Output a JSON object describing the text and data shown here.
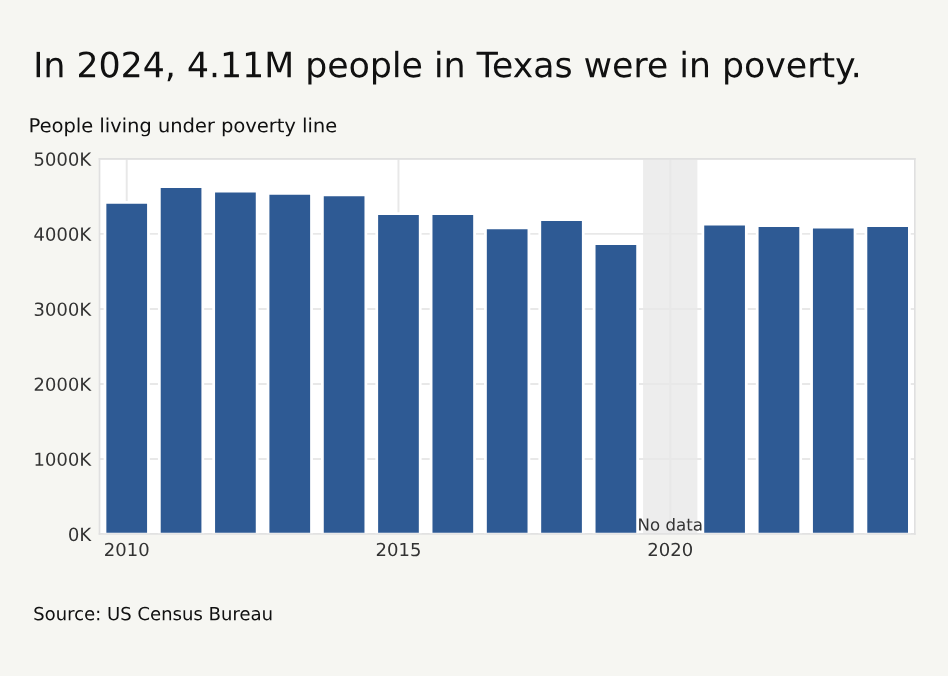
{
  "chart_data": {
    "type": "bar",
    "title": "In 2024, 4.11M people in Texas were in poverty.",
    "ylabel": "People living under poverty line",
    "x": [
      2010,
      2011,
      2012,
      2013,
      2014,
      2015,
      2016,
      2017,
      2018,
      2019,
      2020,
      2021,
      2022,
      2023,
      2024
    ],
    "values": [
      4420,
      4630,
      4570,
      4540,
      4520,
      4270,
      4270,
      4080,
      4190,
      3870,
      null,
      4130,
      4110,
      4090,
      4110
    ],
    "color": "#2e5a94",
    "xlim": [
      2009.5,
      2024.5
    ],
    "xticks": [
      2010,
      2015,
      2020
    ],
    "ylim": [
      0,
      5000
    ],
    "yticks": [
      {
        "value": 0,
        "label": "0K"
      },
      {
        "value": 1000,
        "label": "1000K"
      },
      {
        "value": 2000,
        "label": "2000K"
      },
      {
        "value": 3000,
        "label": "3000K"
      },
      {
        "value": 4000,
        "label": "4000K"
      },
      {
        "value": 5000,
        "label": "5000K"
      }
    ],
    "bands": [
      {
        "axis": "x",
        "from": 2019.5,
        "to": 2020.5,
        "label": "No data",
        "color": "#ededed"
      }
    ],
    "grid": true,
    "annotations": [
      "Source: US Census Bureau"
    ]
  }
}
